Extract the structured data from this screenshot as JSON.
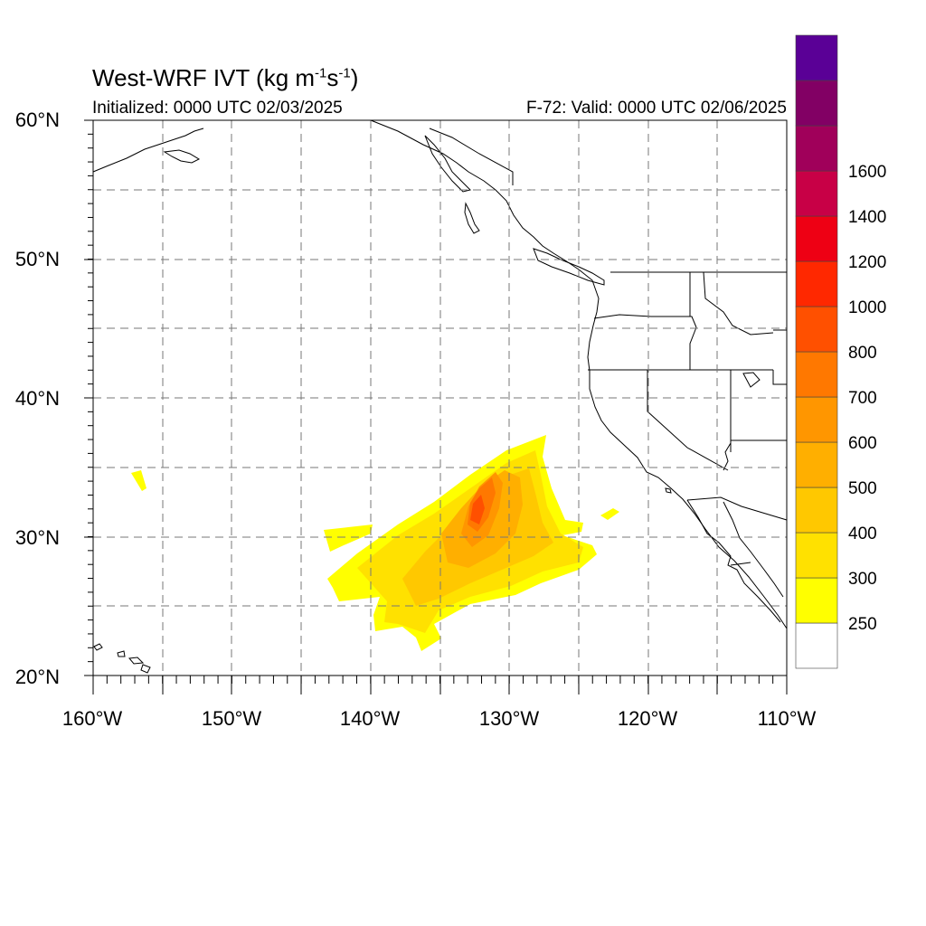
{
  "title": {
    "main": "West-WRF IVT (kg m",
    "exp1": "-1",
    "mid": "s",
    "exp2": "-1",
    "end": ")"
  },
  "initialized": "Initialized: 0000 UTC 02/03/2025",
  "valid": "F-72: Valid: 0000 UTC 02/06/2025",
  "lat_labels": [
    "60°N",
    "50°N",
    "40°N",
    "30°N",
    "20°N"
  ],
  "lon_labels": [
    "160°W",
    "150°W",
    "140°W",
    "130°W",
    "120°W",
    "110°W"
  ],
  "colorbar": {
    "labels": [
      "250",
      "300",
      "400",
      "500",
      "600",
      "700",
      "800",
      "1000",
      "1200",
      "1400",
      "1600"
    ],
    "colors": [
      "#ffffff",
      "#ffff00",
      "#ffe100",
      "#ffc800",
      "#ffaf00",
      "#ff9600",
      "#ff7800",
      "#ff5000",
      "#ff2800",
      "#ee0014",
      "#c80046",
      "#a0005a",
      "#820064",
      "#5a0096"
    ]
  },
  "field_colors": {
    "ivt_250": "#ffff00",
    "ivt_300": "#ffe100",
    "ivt_400": "#ffc800",
    "ivt_500": "#ffaf00",
    "ivt_600": "#ff9600",
    "ivt_700": "#ff7800",
    "ivt_800": "#ff5000"
  },
  "map_extent": {
    "lon": [
      -160,
      -110
    ],
    "lat": [
      20,
      60
    ]
  }
}
